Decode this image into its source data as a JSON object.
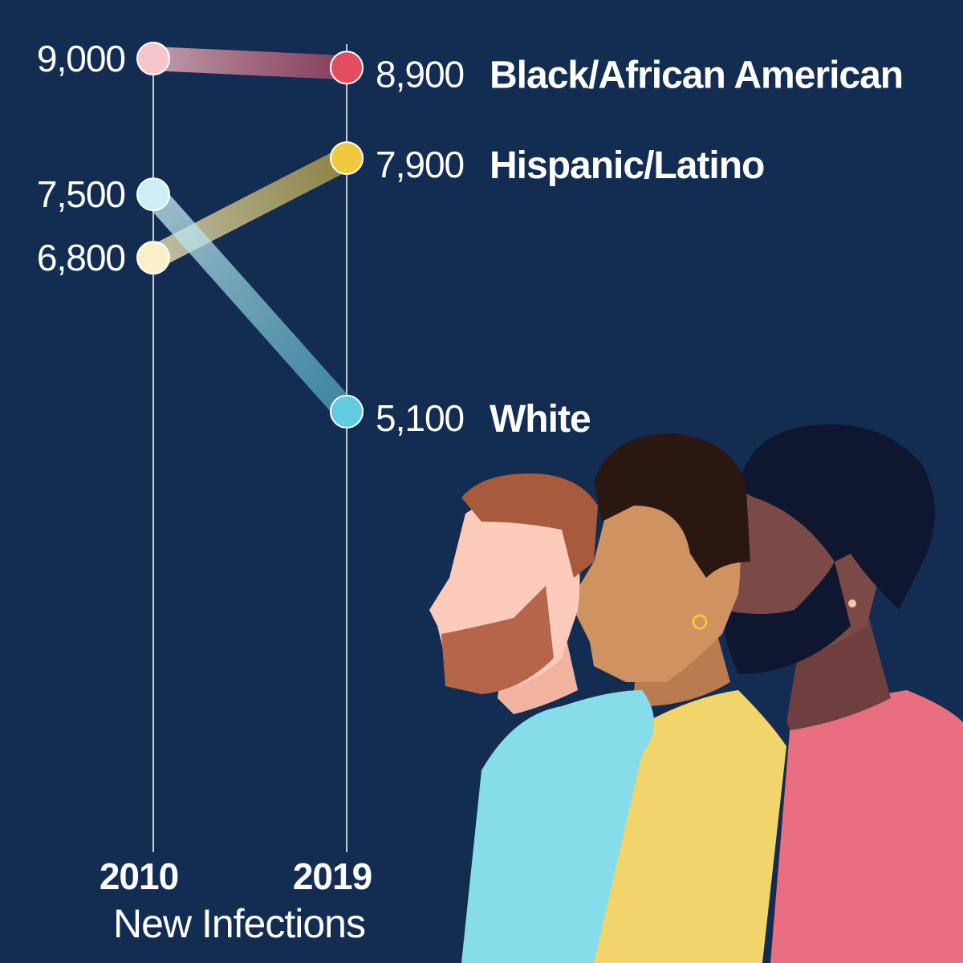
{
  "chart_data": {
    "type": "slope",
    "categories": [
      "2010",
      "2019"
    ],
    "xlabel": "New Infections",
    "series": [
      {
        "name": "Black/African American",
        "values": [
          9000,
          8900
        ],
        "colors": [
          "#f7c6cc",
          "#e24d62"
        ]
      },
      {
        "name": "Hispanic/Latino",
        "values": [
          6800,
          7900
        ],
        "colors": [
          "#fbefc8",
          "#f0c93e"
        ]
      },
      {
        "name": "White",
        "values": [
          7500,
          5100
        ],
        "colors": [
          "#cdeef4",
          "#62cbe0"
        ]
      }
    ],
    "left_labels": [
      "9,000",
      "7,500",
      "6,800"
    ],
    "right_labels": [
      "8,900",
      "7,900",
      "5,100"
    ],
    "background": "#132d52"
  }
}
